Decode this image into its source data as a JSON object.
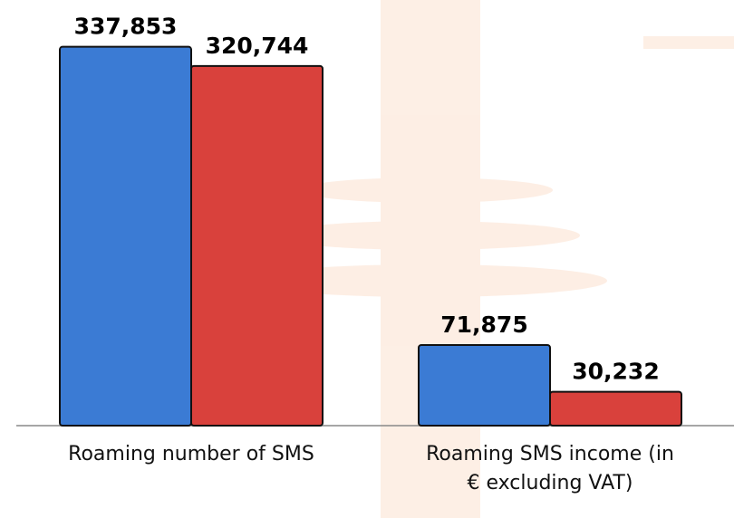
{
  "chart_data": {
    "type": "bar",
    "categories": [
      "Roaming number of SMS",
      "Roaming SMS income (in € excluding VAT)"
    ],
    "series": [
      {
        "color": "#3b7bd4",
        "values": [
          337853,
          71875
        ],
        "value_labels": [
          "337,853",
          "71,875"
        ]
      },
      {
        "color": "#d9413c",
        "values": [
          320744,
          30232
        ],
        "value_labels": [
          "320,744",
          "30,232"
        ]
      }
    ],
    "ylim": [
      0,
      340000
    ]
  }
}
